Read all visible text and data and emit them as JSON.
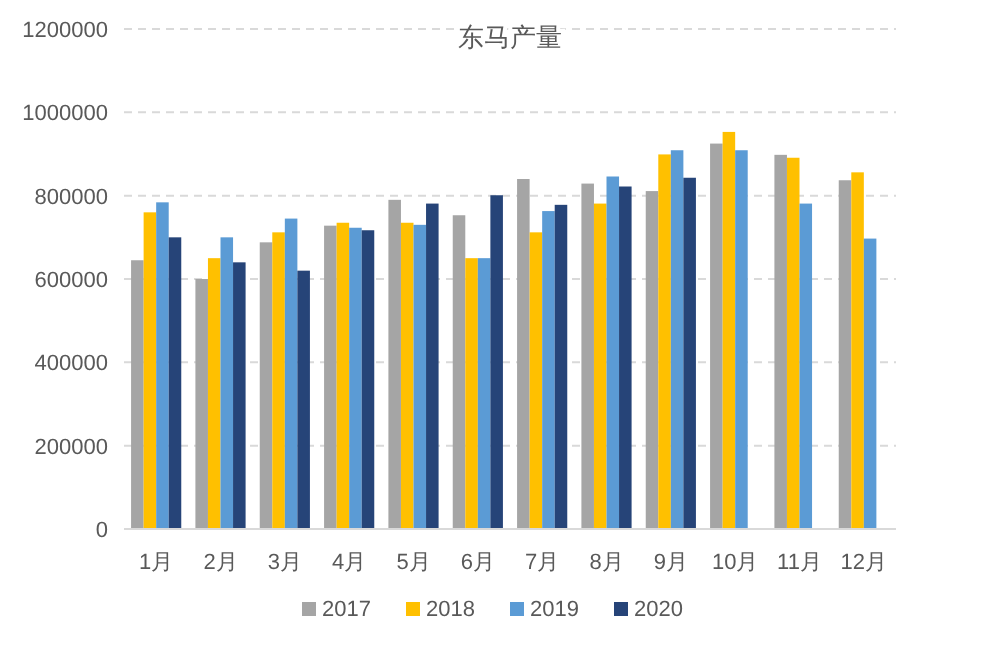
{
  "chart_data": {
    "type": "bar",
    "title": "东马产量",
    "categories": [
      "1月",
      "2月",
      "3月",
      "4月",
      "5月",
      "6月",
      "7月",
      "8月",
      "9月",
      "10月",
      "11月",
      "12月"
    ],
    "series": [
      {
        "name": "2017",
        "color": "#a5a5a5",
        "values": [
          645000,
          600000,
          688000,
          728000,
          790000,
          753000,
          840000,
          829000,
          811000,
          925000,
          898000,
          837000
        ]
      },
      {
        "name": "2018",
        "color": "#ffc000",
        "values": [
          760000,
          650000,
          712000,
          735000,
          735000,
          650000,
          712000,
          781000,
          899000,
          953000,
          891000,
          856000
        ]
      },
      {
        "name": "2019",
        "color": "#5b9bd5",
        "values": [
          784000,
          700000,
          745000,
          723000,
          730000,
          650000,
          763000,
          846000,
          909000,
          909000,
          781000,
          697000
        ]
      },
      {
        "name": "2020",
        "color": "#264478",
        "values": [
          700000,
          640000,
          620000,
          717000,
          781000,
          801000,
          778000,
          822000,
          843000,
          null,
          null,
          null
        ]
      }
    ],
    "ylim": [
      0,
      1200000
    ],
    "yticks": [
      0,
      200000,
      400000,
      600000,
      800000,
      1000000,
      1200000
    ],
    "grid": "y",
    "legend": "bottom"
  }
}
